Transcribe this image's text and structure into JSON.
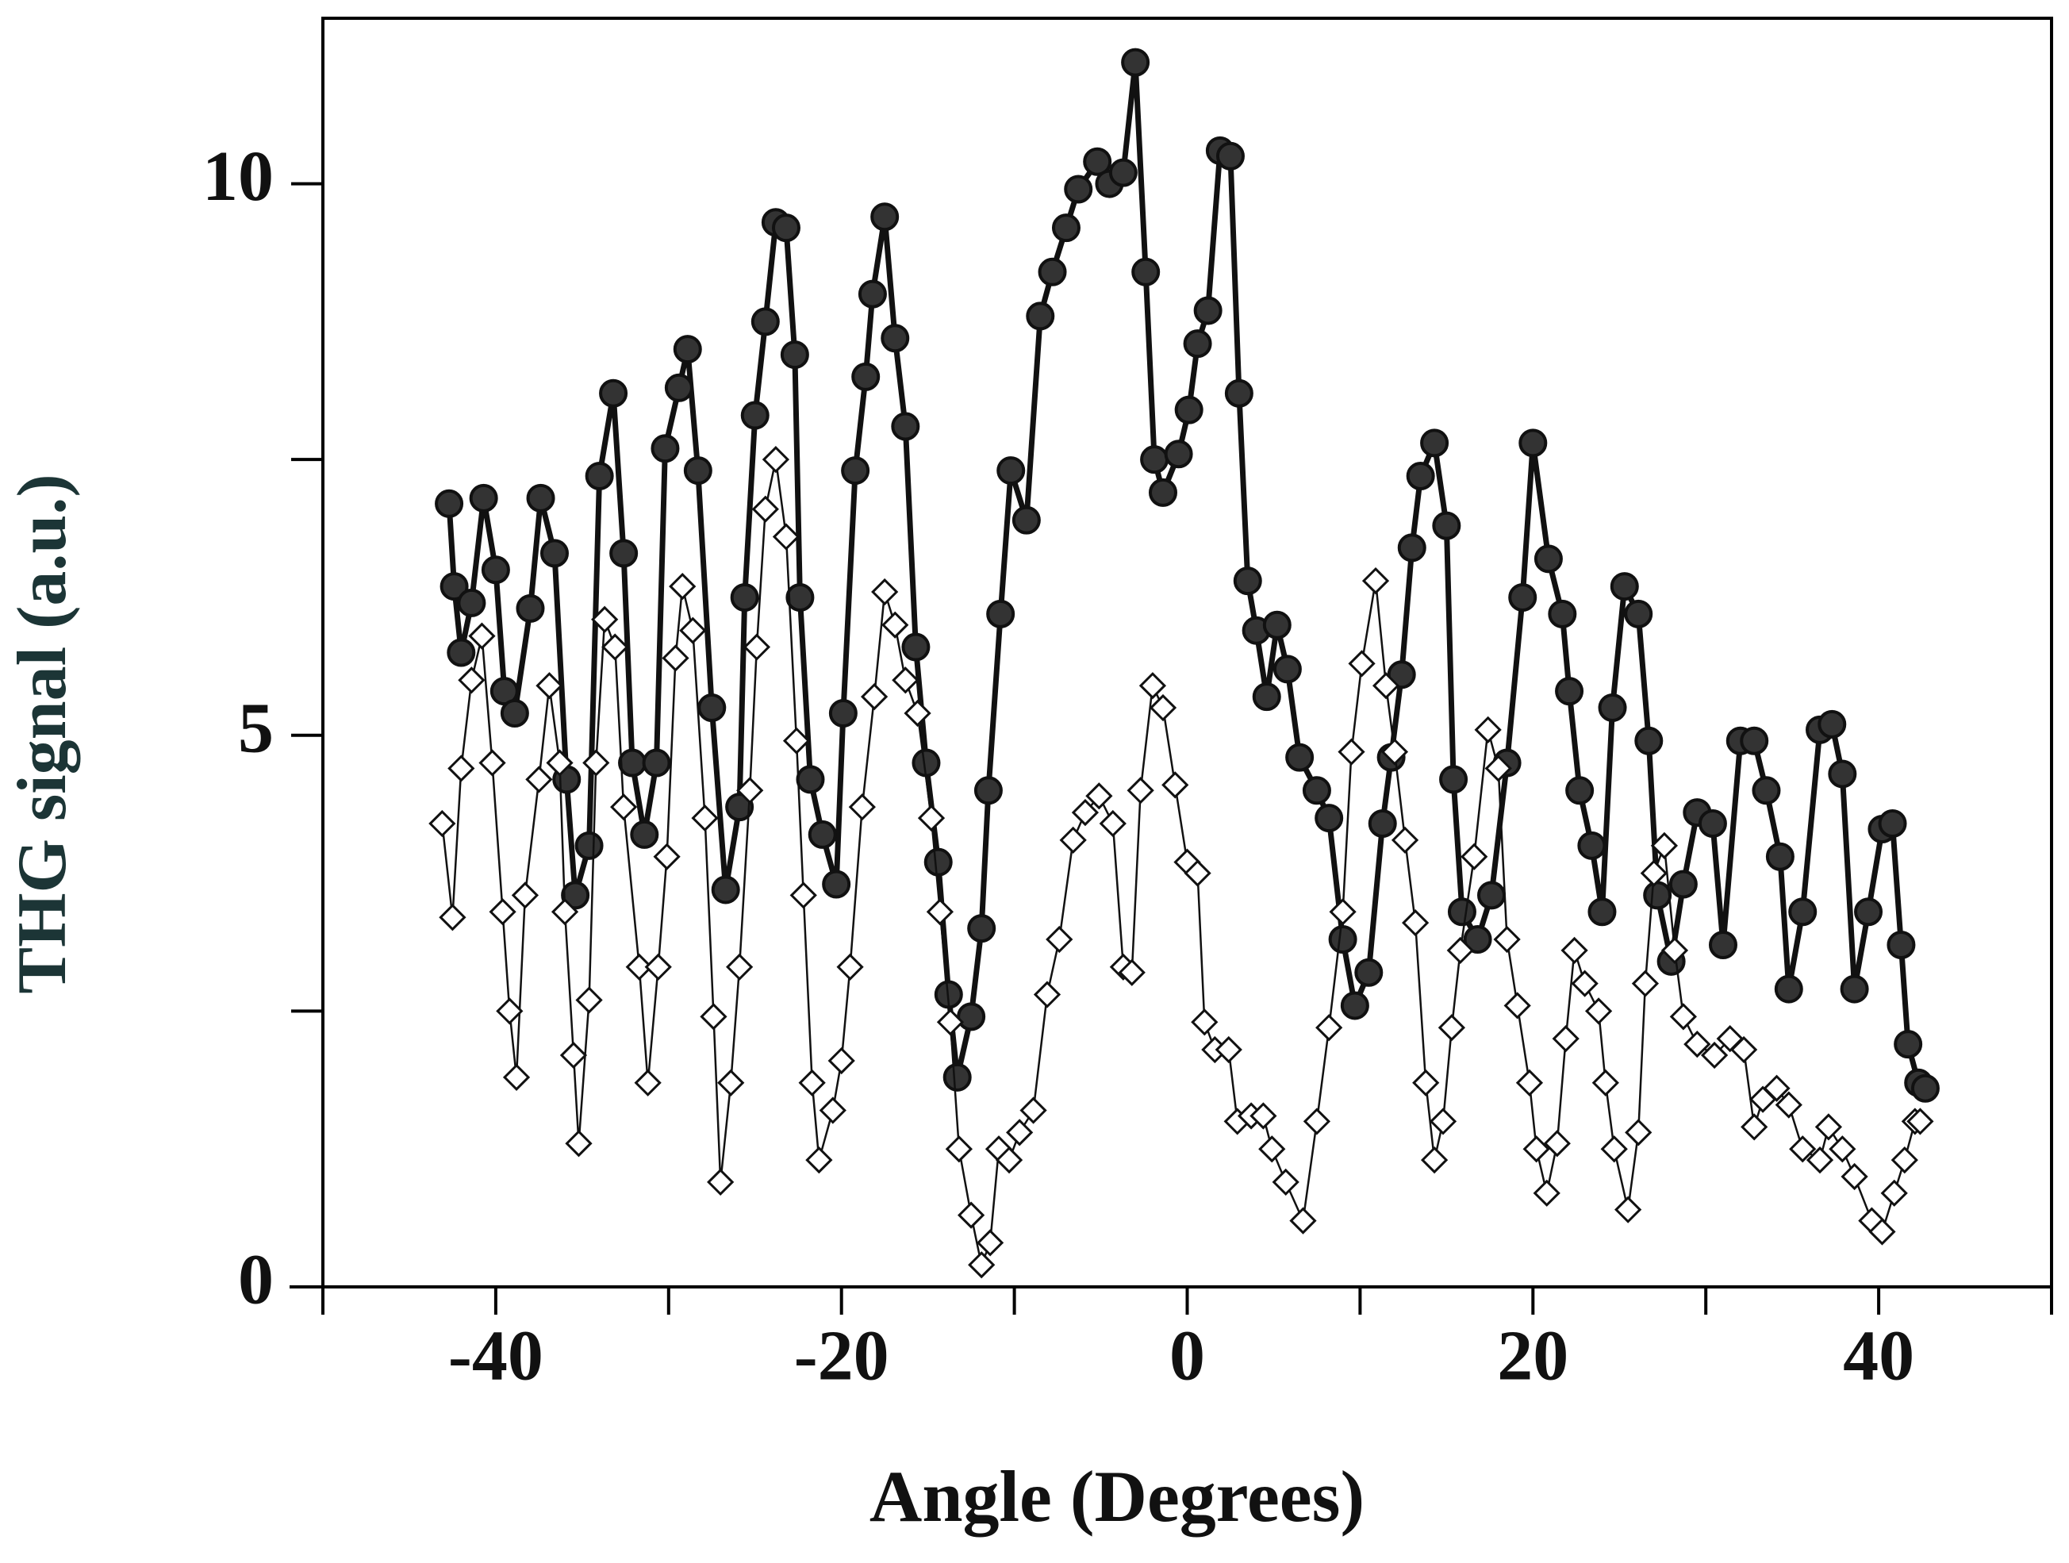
{
  "chart_data": {
    "type": "line",
    "x_label": "Angle (Degrees)",
    "y_label": "THG signal (a.u.)",
    "xlim": [
      -50,
      50
    ],
    "xticks": [
      -40,
      -20,
      0,
      20,
      40
    ],
    "xminor_ticks": [
      -50,
      -30,
      -10,
      10,
      30,
      50
    ],
    "ylim": [
      0,
      11.5
    ],
    "yticks": [
      0,
      5,
      10
    ],
    "yminor_ticks": [
      2.5,
      7.5
    ],
    "series": [
      {
        "color": "#111111",
        "marker": "circle",
        "x": [
          -42.7,
          -42.4,
          -42.0,
          -41.4,
          -40.7,
          -40.0,
          -39.5,
          -38.9,
          -38.0,
          -37.4,
          -36.6,
          -35.9,
          -35.4,
          -34.6,
          -34.0,
          -33.2,
          -32.6,
          -32.1,
          -31.4,
          -30.7,
          -30.2,
          -29.4,
          -28.9,
          -28.3,
          -27.5,
          -26.7,
          -25.9,
          -25.6,
          -25.0,
          -24.4,
          -23.8,
          -23.2,
          -22.7,
          -22.4,
          -21.8,
          -21.1,
          -20.3,
          -19.9,
          -19.2,
          -18.6,
          -18.2,
          -17.5,
          -16.9,
          -16.3,
          -15.7,
          -15.1,
          -14.4,
          -13.8,
          -13.3,
          -12.5,
          -11.9,
          -11.5,
          -10.8,
          -10.2,
          -9.3,
          -8.5,
          -7.8,
          -7.0,
          -6.3,
          -5.2,
          -4.5,
          -3.7,
          -3.0,
          -2.4,
          -1.9,
          -1.4,
          -0.5,
          0.1,
          0.6,
          1.2,
          1.9,
          2.5,
          3.0,
          3.5,
          4.0,
          4.6,
          5.2,
          5.8,
          6.5,
          7.5,
          8.2,
          9.0,
          9.7,
          10.5,
          11.3,
          11.8,
          12.4,
          13.0,
          13.5,
          14.3,
          15.0,
          15.4,
          15.9,
          16.8,
          17.6,
          18.5,
          19.4,
          20.0,
          20.9,
          21.7,
          22.1,
          22.7,
          23.4,
          24.0,
          24.6,
          25.3,
          26.1,
          26.7,
          27.2,
          28.0,
          28.7,
          29.5,
          30.4,
          31.0,
          32.0,
          32.8,
          33.5,
          34.3,
          34.8,
          35.6,
          36.6,
          37.3,
          37.9,
          38.6,
          39.4,
          40.2,
          40.8,
          41.3,
          41.7,
          42.3,
          42.7
        ],
        "values": [
          7.1,
          6.35,
          5.75,
          6.2,
          7.15,
          6.5,
          5.4,
          5.2,
          6.15,
          7.15,
          6.65,
          4.6,
          3.55,
          4.0,
          7.35,
          8.1,
          6.65,
          4.75,
          4.1,
          4.75,
          7.6,
          8.15,
          8.5,
          7.4,
          5.25,
          3.6,
          4.35,
          6.25,
          7.9,
          8.75,
          9.65,
          9.6,
          8.45,
          6.25,
          4.6,
          4.1,
          3.65,
          5.2,
          7.4,
          8.25,
          9.0,
          9.7,
          8.6,
          7.8,
          5.8,
          4.75,
          3.85,
          2.65,
          1.9,
          2.45,
          3.25,
          4.5,
          6.1,
          7.4,
          6.95,
          8.8,
          9.2,
          9.6,
          9.95,
          10.2,
          10.0,
          10.1,
          11.1,
          9.2,
          7.5,
          7.2,
          7.55,
          7.95,
          8.55,
          8.85,
          10.3,
          10.25,
          8.1,
          6.4,
          5.95,
          5.35,
          6.0,
          5.6,
          4.8,
          4.5,
          4.25,
          3.15,
          2.55,
          2.85,
          4.2,
          4.8,
          5.55,
          6.7,
          7.35,
          7.65,
          6.9,
          4.6,
          3.4,
          3.15,
          3.55,
          4.75,
          6.25,
          7.65,
          6.6,
          6.1,
          5.4,
          4.5,
          4.0,
          3.4,
          5.25,
          6.35,
          6.1,
          4.95,
          3.55,
          2.95,
          3.65,
          4.3,
          4.2,
          3.1,
          4.95,
          4.95,
          4.5,
          3.9,
          2.7,
          3.4,
          5.05,
          5.1,
          4.65,
          2.7,
          3.4,
          4.15,
          4.2,
          3.1,
          2.2,
          1.85,
          1.8
        ]
      },
      {
        "color": "#111111",
        "marker": "diamond",
        "x": [
          -43.1,
          -42.5,
          -42.0,
          -41.4,
          -40.8,
          -40.2,
          -39.6,
          -39.2,
          -38.8,
          -38.3,
          -37.5,
          -36.9,
          -36.3,
          -36.0,
          -35.5,
          -35.2,
          -34.6,
          -34.2,
          -33.7,
          -33.1,
          -32.6,
          -31.7,
          -31.2,
          -30.6,
          -30.1,
          -29.6,
          -29.2,
          -28.6,
          -27.9,
          -27.4,
          -27.0,
          -26.4,
          -25.9,
          -25.3,
          -24.9,
          -24.4,
          -23.8,
          -23.2,
          -22.6,
          -22.2,
          -21.7,
          -21.3,
          -20.5,
          -20.0,
          -19.5,
          -18.8,
          -18.1,
          -17.5,
          -16.9,
          -16.3,
          -15.6,
          -14.8,
          -14.3,
          -13.7,
          -13.2,
          -12.5,
          -11.9,
          -11.4,
          -10.9,
          -10.3,
          -9.7,
          -8.9,
          -8.1,
          -7.4,
          -6.6,
          -5.9,
          -5.1,
          -4.3,
          -3.7,
          -3.2,
          -2.7,
          -2.0,
          -1.4,
          -0.7,
          0.0,
          0.6,
          1.0,
          1.6,
          2.4,
          2.9,
          3.7,
          4.4,
          4.9,
          5.7,
          6.7,
          7.5,
          8.2,
          9.0,
          9.5,
          10.1,
          10.9,
          11.5,
          12.0,
          12.6,
          13.2,
          13.8,
          14.3,
          14.8,
          15.3,
          15.8,
          16.6,
          17.4,
          18.0,
          18.5,
          19.1,
          19.8,
          20.2,
          20.8,
          21.4,
          21.9,
          22.4,
          23.0,
          23.8,
          24.2,
          24.7,
          25.5,
          26.1,
          26.5,
          27.0,
          27.6,
          28.2,
          28.7,
          29.5,
          30.5,
          31.4,
          32.2,
          32.8,
          33.3,
          34.1,
          34.8,
          35.6,
          36.6,
          37.1,
          37.9,
          38.6,
          39.6,
          40.2,
          40.9,
          41.5,
          42.1,
          42.4
        ],
        "values": [
          4.2,
          3.35,
          4.7,
          5.5,
          5.9,
          4.75,
          3.4,
          2.5,
          1.9,
          3.55,
          4.6,
          5.45,
          4.75,
          3.4,
          2.1,
          1.3,
          2.6,
          4.75,
          6.05,
          5.8,
          4.35,
          2.9,
          1.85,
          2.9,
          3.9,
          5.7,
          6.35,
          5.95,
          4.25,
          2.45,
          0.95,
          1.85,
          2.9,
          4.5,
          5.8,
          7.05,
          7.5,
          6.8,
          4.95,
          3.55,
          1.85,
          1.15,
          1.6,
          2.05,
          2.9,
          4.35,
          5.35,
          6.3,
          6.0,
          5.5,
          5.2,
          4.25,
          3.4,
          2.4,
          1.25,
          0.65,
          0.2,
          0.4,
          1.25,
          1.15,
          1.4,
          1.6,
          2.65,
          3.15,
          4.05,
          4.3,
          4.45,
          4.2,
          2.9,
          2.85,
          4.5,
          5.45,
          5.25,
          4.55,
          3.85,
          3.75,
          2.4,
          2.15,
          2.15,
          1.5,
          1.55,
          1.55,
          1.25,
          0.95,
          0.6,
          1.5,
          2.35,
          3.4,
          4.85,
          5.65,
          6.4,
          5.45,
          4.85,
          4.05,
          3.3,
          1.85,
          1.15,
          1.5,
          2.35,
          3.05,
          3.9,
          5.05,
          4.7,
          3.15,
          2.55,
          1.85,
          1.25,
          0.85,
          1.3,
          2.25,
          3.05,
          2.75,
          2.5,
          1.85,
          1.25,
          0.7,
          1.4,
          2.75,
          3.75,
          4.0,
          3.05,
          2.45,
          2.2,
          2.1,
          2.25,
          2.15,
          1.45,
          1.7,
          1.8,
          1.65,
          1.25,
          1.15,
          1.45,
          1.25,
          1.0,
          0.6,
          0.5,
          0.85,
          1.15,
          1.5,
          1.5
        ]
      }
    ]
  }
}
